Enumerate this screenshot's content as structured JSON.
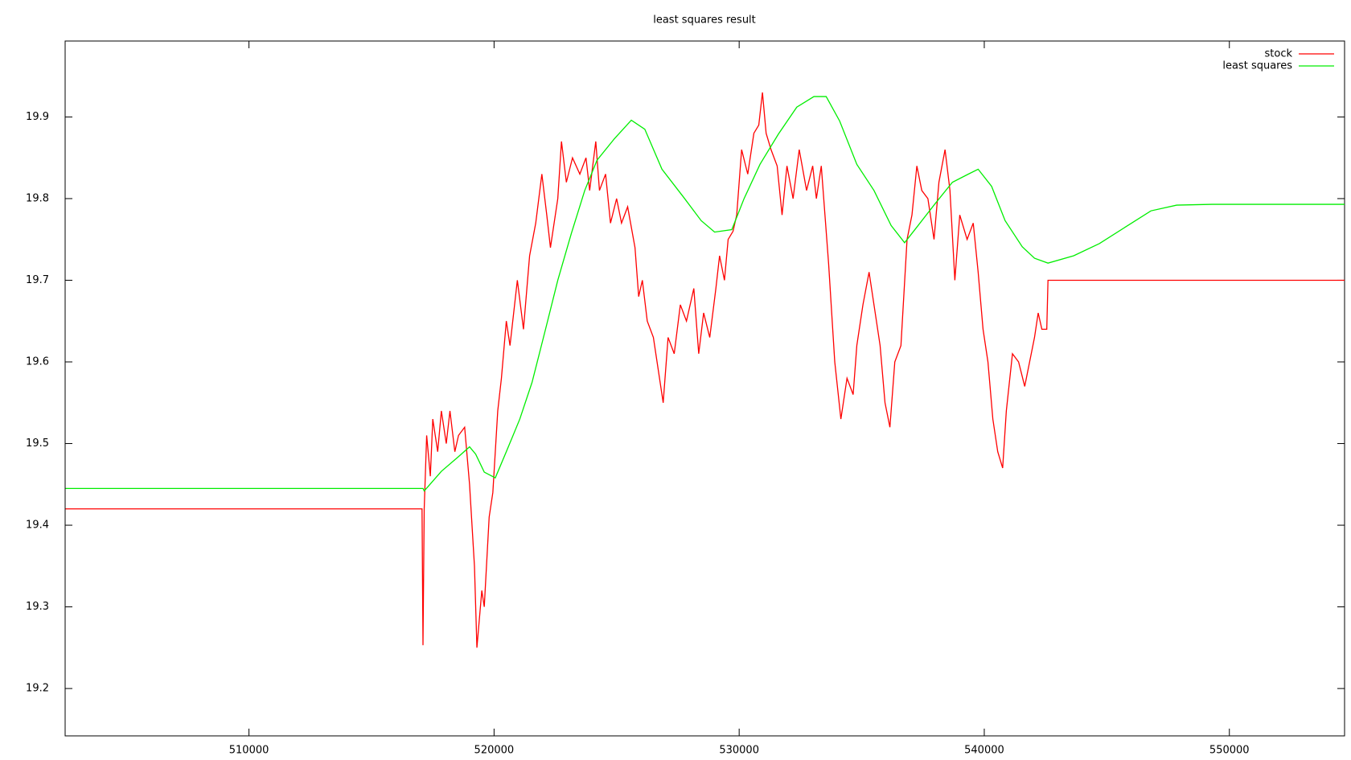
{
  "chart_data": {
    "type": "line",
    "title": "least squares result",
    "xlim": [
      502500,
      554700
    ],
    "ylim": [
      19.142,
      19.993
    ],
    "xticks": [
      510000,
      520000,
      530000,
      540000,
      550000
    ],
    "yticks": [
      19.2,
      19.3,
      19.4,
      19.5,
      19.6,
      19.7,
      19.8,
      19.9
    ],
    "grid": false,
    "legend": "top-right",
    "series": [
      {
        "name": "stock",
        "color": "#ff0000",
        "x": [
          502517,
          517061,
          517100,
          517150,
          517250,
          517400,
          517500,
          517700,
          517850,
          518050,
          518200,
          518400,
          518550,
          518800,
          519000,
          519200,
          519300,
          519500,
          519600,
          519800,
          519950,
          520150,
          520300,
          520500,
          520650,
          520950,
          521200,
          521450,
          521700,
          521950,
          522150,
          522300,
          522600,
          522750,
          522950,
          523200,
          523500,
          523750,
          523900,
          524150,
          524300,
          524550,
          524750,
          525000,
          525200,
          525450,
          525750,
          525900,
          526050,
          526250,
          526500,
          526700,
          526900,
          527100,
          527350,
          527600,
          527850,
          528150,
          528350,
          528550,
          528800,
          529050,
          529200,
          529400,
          529550,
          529750,
          529900,
          530100,
          530350,
          530600,
          530800,
          530950,
          531100,
          531300,
          531550,
          531750,
          531950,
          532200,
          532450,
          532750,
          533000,
          533150,
          533350,
          533500,
          533650,
          533900,
          534150,
          534400,
          534650,
          534800,
          535050,
          535300,
          535550,
          535750,
          535950,
          536150,
          536350,
          536600,
          536850,
          537050,
          537250,
          537450,
          537700,
          537950,
          538150,
          538400,
          538600,
          538800,
          539000,
          539300,
          539550,
          539750,
          539950,
          540150,
          540350,
          540550,
          540750,
          540900,
          541150,
          541400,
          541650,
          541850,
          542050,
          542200,
          542350,
          542550,
          542600,
          554700
        ],
        "values": [
          19.42,
          19.42,
          19.253,
          19.42,
          19.51,
          19.46,
          19.53,
          19.49,
          19.54,
          19.5,
          19.54,
          19.49,
          19.51,
          19.52,
          19.45,
          19.35,
          19.25,
          19.32,
          19.3,
          19.41,
          19.44,
          19.54,
          19.58,
          19.65,
          19.62,
          19.7,
          19.64,
          19.73,
          19.77,
          19.83,
          19.78,
          19.74,
          19.8,
          19.87,
          19.82,
          19.85,
          19.83,
          19.85,
          19.81,
          19.87,
          19.81,
          19.83,
          19.77,
          19.8,
          19.77,
          19.79,
          19.74,
          19.68,
          19.7,
          19.65,
          19.63,
          19.59,
          19.55,
          19.63,
          19.61,
          19.67,
          19.65,
          19.69,
          19.61,
          19.66,
          19.63,
          19.69,
          19.73,
          19.7,
          19.75,
          19.76,
          19.78,
          19.86,
          19.83,
          19.88,
          19.89,
          19.93,
          19.88,
          19.86,
          19.84,
          19.78,
          19.84,
          19.8,
          19.86,
          19.81,
          19.84,
          19.8,
          19.84,
          19.78,
          19.72,
          19.6,
          19.53,
          19.58,
          19.56,
          19.62,
          19.67,
          19.71,
          19.66,
          19.62,
          19.55,
          19.52,
          19.6,
          19.62,
          19.75,
          19.78,
          19.84,
          19.81,
          19.8,
          19.75,
          19.82,
          19.86,
          19.81,
          19.7,
          19.78,
          19.75,
          19.77,
          19.71,
          19.64,
          19.6,
          19.53,
          19.49,
          19.47,
          19.54,
          19.61,
          19.6,
          19.57,
          19.6,
          19.63,
          19.66,
          19.64,
          19.64,
          19.7,
          19.7
        ]
      },
      {
        "name": "least squares",
        "color": "#00ee00",
        "x": [
          502517,
          517100,
          517150,
          517850,
          518550,
          519000,
          519250,
          519600,
          520050,
          520500,
          521050,
          521550,
          522100,
          522600,
          523150,
          523700,
          524200,
          524900,
          525600,
          526150,
          526850,
          527750,
          528450,
          529000,
          529700,
          530200,
          530850,
          531600,
          532350,
          533050,
          533550,
          534100,
          534800,
          535500,
          536200,
          536750,
          537300,
          538000,
          538700,
          539350,
          539750,
          540300,
          540850,
          541550,
          542050,
          542600,
          543650,
          544700,
          545750,
          546800,
          547850,
          549300,
          554700
        ],
        "values": [
          19.445,
          19.445,
          19.442,
          19.466,
          19.484,
          19.496,
          19.487,
          19.465,
          19.458,
          19.49,
          19.53,
          19.575,
          19.64,
          19.7,
          19.757,
          19.81,
          19.847,
          19.873,
          19.896,
          19.885,
          19.836,
          19.801,
          19.773,
          19.759,
          19.762,
          19.8,
          19.842,
          19.879,
          19.912,
          19.925,
          19.925,
          19.895,
          19.842,
          19.81,
          19.767,
          19.746,
          19.767,
          19.794,
          19.82,
          19.83,
          19.836,
          19.815,
          19.773,
          19.741,
          19.727,
          19.721,
          19.73,
          19.745,
          19.765,
          19.785,
          19.792,
          19.793,
          19.793
        ]
      }
    ]
  }
}
